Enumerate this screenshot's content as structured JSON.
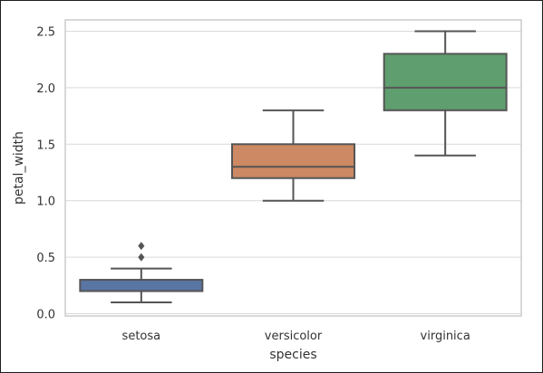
{
  "chart_data": {
    "type": "box",
    "title": "",
    "xlabel": "species",
    "ylabel": "petal_width",
    "ylim": [
      -0.02,
      2.6
    ],
    "yticks": [
      0.0,
      0.5,
      1.0,
      1.5,
      2.0,
      2.5
    ],
    "ytick_labels": [
      "0.0",
      "0.5",
      "1.0",
      "1.5",
      "2.0",
      "2.5"
    ],
    "grid": "horizontal",
    "categories": [
      "setosa",
      "versicolor",
      "virginica"
    ],
    "series": [
      {
        "category": "setosa",
        "color": "#5975a4",
        "whisker_low": 0.1,
        "q1": 0.2,
        "median": 0.2,
        "q3": 0.3,
        "whisker_high": 0.4,
        "outliers": [
          0.5,
          0.6
        ]
      },
      {
        "category": "versicolor",
        "color": "#cc8963",
        "whisker_low": 1.0,
        "q1": 1.2,
        "median": 1.3,
        "q3": 1.5,
        "whisker_high": 1.8,
        "outliers": []
      },
      {
        "category": "virginica",
        "color": "#5f9e6e",
        "whisker_low": 1.4,
        "q1": 1.8,
        "median": 2.0,
        "q3": 2.3,
        "whisker_high": 2.5,
        "outliers": []
      }
    ],
    "colors": {
      "grid": "#d9d9d9",
      "spine": "#cccccc",
      "box_edge": "#555555"
    }
  }
}
